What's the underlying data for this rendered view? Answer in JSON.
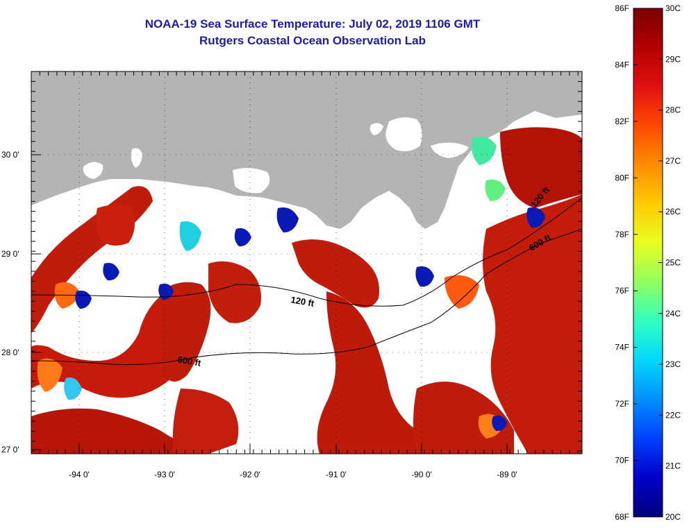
{
  "title": {
    "line1": "NOAA-19 Sea Surface Temperature:  July 02, 2019 1106 GMT",
    "line2": "Rutgers Coastal Ocean Observation Lab"
  },
  "axes": {
    "lat_labels": [
      "30 0'",
      "29 0'",
      "28 0'",
      "27 0'"
    ],
    "lon_labels": [
      "-94 0'",
      "-93 0'",
      "-92 0'",
      "-91 0'",
      "-90 0'",
      "-89 0'"
    ]
  },
  "contours": {
    "label_120": "120 ft",
    "label_600": "600 ft"
  },
  "colorbar": {
    "f_labels": [
      "86F",
      "84F",
      "82F",
      "80F",
      "78F",
      "76F",
      "74F",
      "72F",
      "70F",
      "68F"
    ],
    "c_labels": [
      "30C",
      "29C",
      "28C",
      "27C",
      "26C",
      "25C",
      "24C",
      "23C",
      "22C",
      "21C",
      "20C"
    ],
    "stops": [
      "#7a0000",
      "#b40000",
      "#e01010",
      "#ff4a00",
      "#ff8c00",
      "#ffcc00",
      "#e8ff20",
      "#90ff60",
      "#30ffc0",
      "#00d8ff",
      "#0090ff",
      "#0040ff",
      "#0000c8",
      "#00007a"
    ]
  },
  "colors": {
    "land": "#b4b4b4",
    "hot": "#c01c0c",
    "warm": "#ff6a10",
    "cool": "#20d0e0",
    "cold": "#0a1ab4"
  }
}
